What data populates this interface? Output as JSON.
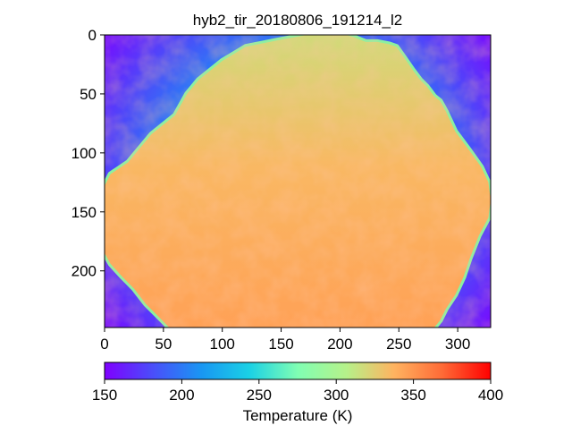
{
  "chart_data": {
    "type": "heatmap",
    "title": "hyb2_tir_20180806_191214_l2",
    "xlabel": "",
    "ylabel": "",
    "x_range": [
      0,
      328
    ],
    "y_range": [
      248,
      0
    ],
    "x_ticks": [
      0,
      50,
      100,
      150,
      200,
      250,
      300
    ],
    "y_ticks": [
      0,
      50,
      100,
      150,
      200
    ],
    "grid": false,
    "colormap": "rainbow",
    "colorbar": {
      "label": "Temperature (K)",
      "orientation": "horizontal",
      "placement": "bottom",
      "range": [
        150,
        400
      ],
      "ticks": [
        150,
        200,
        250,
        300,
        350,
        400
      ]
    },
    "background_temperature": {
      "corner_K": 175,
      "edge_K": 215
    },
    "object_outline": [
      [
        0,
        128
      ],
      [
        5,
        118
      ],
      [
        20,
        108
      ],
      [
        40,
        84
      ],
      [
        60,
        68
      ],
      [
        70,
        50
      ],
      [
        80,
        38
      ],
      [
        100,
        22
      ],
      [
        120,
        10
      ],
      [
        150,
        4
      ],
      [
        172,
        0
      ],
      [
        205,
        0
      ],
      [
        212,
        2
      ],
      [
        222,
        6
      ],
      [
        232,
        6
      ],
      [
        242,
        8
      ],
      [
        248,
        10
      ],
      [
        255,
        20
      ],
      [
        262,
        30
      ],
      [
        268,
        38
      ],
      [
        274,
        44
      ],
      [
        280,
        52
      ],
      [
        285,
        56
      ],
      [
        290,
        65
      ],
      [
        298,
        82
      ],
      [
        310,
        98
      ],
      [
        320,
        112
      ],
      [
        326,
        125
      ],
      [
        328,
        140
      ],
      [
        326,
        155
      ],
      [
        318,
        170
      ],
      [
        310,
        190
      ],
      [
        305,
        205
      ],
      [
        298,
        220
      ],
      [
        290,
        232
      ],
      [
        285,
        242
      ],
      [
        280,
        248
      ],
      [
        55,
        248
      ],
      [
        45,
        238
      ],
      [
        35,
        228
      ],
      [
        25,
        215
      ],
      [
        15,
        205
      ],
      [
        5,
        194
      ],
      [
        0,
        185
      ]
    ],
    "surface_temperature": {
      "north_K": 318,
      "south_K": 345,
      "typical_K": 335
    },
    "colors": {
      "outline": "#8bf0a0"
    }
  }
}
